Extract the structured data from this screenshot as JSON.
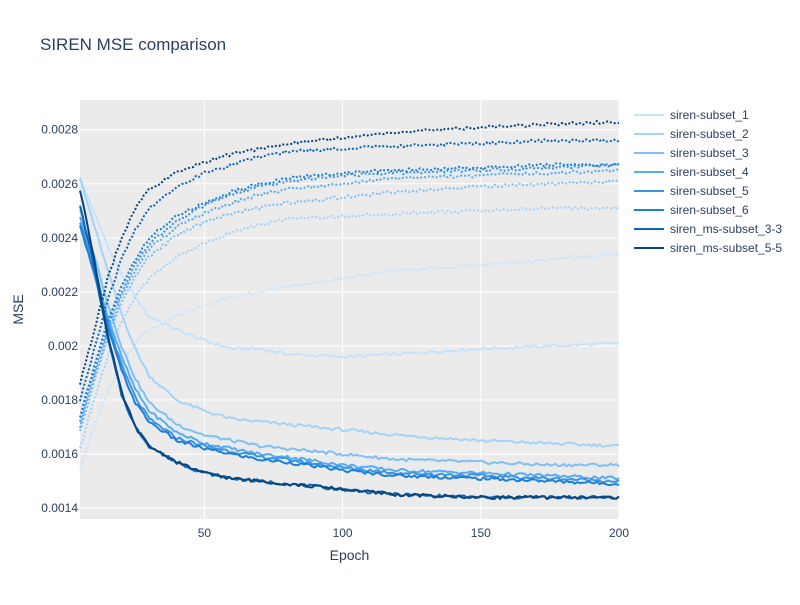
{
  "chart_data": {
    "type": "line",
    "title": "SIREN MSE comparison",
    "xlabel": "Epoch",
    "ylabel": "MSE",
    "xlim": [
      5,
      200
    ],
    "ylim": [
      0.00136,
      0.00291
    ],
    "x_ticks": [
      50,
      100,
      150,
      200
    ],
    "x_tick_labels": [
      "50",
      "100",
      "150",
      "200"
    ],
    "y_ticks": [
      0.0014,
      0.0016,
      0.0018,
      0.002,
      0.0022,
      0.0024,
      0.0026,
      0.0028
    ],
    "y_tick_labels": [
      "0.0014",
      "0.0016",
      "0.0018",
      "0.002",
      "0.0022",
      "0.0024",
      "0.0026",
      "0.0028"
    ],
    "grid": true,
    "plot_background": "#ebebeb",
    "legend_position": "right",
    "line_styles": [
      "solid (train)",
      "dotted (validation)"
    ],
    "series": [
      {
        "name": "siren-subset_1",
        "color": "#c6e3fb",
        "solid": [
          [
            5,
            0.00262
          ],
          [
            10,
            0.0025
          ],
          [
            15,
            0.00237
          ],
          [
            20,
            0.00226
          ],
          [
            25,
            0.00218
          ],
          [
            30,
            0.00211
          ],
          [
            40,
            0.00206
          ],
          [
            50,
            0.00202
          ],
          [
            60,
            0.00199
          ],
          [
            70,
            0.00199
          ],
          [
            80,
            0.00197
          ],
          [
            100,
            0.00196
          ],
          [
            120,
            0.00197
          ],
          [
            150,
            0.00199
          ],
          [
            175,
            0.002
          ],
          [
            200,
            0.00201
          ]
        ],
        "dotted": [
          [
            5,
            0.00155
          ],
          [
            10,
            0.0017
          ],
          [
            15,
            0.00183
          ],
          [
            20,
            0.00193
          ],
          [
            25,
            0.00201
          ],
          [
            30,
            0.00206
          ],
          [
            40,
            0.00211
          ],
          [
            50,
            0.00215
          ],
          [
            60,
            0.00218
          ],
          [
            70,
            0.0022
          ],
          [
            80,
            0.00222
          ],
          [
            100,
            0.00225
          ],
          [
            120,
            0.00228
          ],
          [
            150,
            0.0023
          ],
          [
            175,
            0.00232
          ],
          [
            200,
            0.00234
          ]
        ]
      },
      {
        "name": "siren-subset_2",
        "color": "#a2d3fb",
        "solid": [
          [
            5,
            0.00262
          ],
          [
            10,
            0.00245
          ],
          [
            15,
            0.00228
          ],
          [
            20,
            0.00212
          ],
          [
            25,
            0.00199
          ],
          [
            30,
            0.00189
          ],
          [
            40,
            0.0018
          ],
          [
            50,
            0.00176
          ],
          [
            60,
            0.00173
          ],
          [
            70,
            0.00172
          ],
          [
            80,
            0.00171
          ],
          [
            100,
            0.00169
          ],
          [
            120,
            0.00167
          ],
          [
            150,
            0.00165
          ],
          [
            175,
            0.00164
          ],
          [
            200,
            0.00163
          ]
        ],
        "dotted": [
          [
            5,
            0.00162
          ],
          [
            10,
            0.0018
          ],
          [
            15,
            0.00196
          ],
          [
            20,
            0.00209
          ],
          [
            25,
            0.00218
          ],
          [
            30,
            0.00225
          ],
          [
            40,
            0.00233
          ],
          [
            50,
            0.00238
          ],
          [
            60,
            0.00242
          ],
          [
            70,
            0.00245
          ],
          [
            80,
            0.00247
          ],
          [
            100,
            0.00248
          ],
          [
            120,
            0.00249
          ],
          [
            150,
            0.0025
          ],
          [
            175,
            0.00251
          ],
          [
            200,
            0.00251
          ]
        ]
      },
      {
        "name": "siren-subset_3",
        "color": "#7cc0f7",
        "solid": [
          [
            5,
            0.0025
          ],
          [
            10,
            0.00234
          ],
          [
            15,
            0.00216
          ],
          [
            20,
            0.002
          ],
          [
            25,
            0.00188
          ],
          [
            30,
            0.00179
          ],
          [
            40,
            0.00171
          ],
          [
            50,
            0.00167
          ],
          [
            60,
            0.00165
          ],
          [
            70,
            0.00163
          ],
          [
            80,
            0.00162
          ],
          [
            100,
            0.0016
          ],
          [
            120,
            0.00158
          ],
          [
            150,
            0.00157
          ],
          [
            175,
            0.00156
          ],
          [
            200,
            0.00156
          ]
        ],
        "dotted": [
          [
            5,
            0.00168
          ],
          [
            10,
            0.00186
          ],
          [
            15,
            0.00203
          ],
          [
            20,
            0.00216
          ],
          [
            25,
            0.00226
          ],
          [
            30,
            0.00233
          ],
          [
            40,
            0.00241
          ],
          [
            50,
            0.00246
          ],
          [
            60,
            0.00249
          ],
          [
            70,
            0.00251
          ],
          [
            80,
            0.00253
          ],
          [
            100,
            0.00255
          ],
          [
            120,
            0.00257
          ],
          [
            150,
            0.00259
          ],
          [
            175,
            0.0026
          ],
          [
            200,
            0.00261
          ]
        ]
      },
      {
        "name": "siren-subset_4",
        "color": "#57acf1",
        "solid": [
          [
            5,
            0.00248
          ],
          [
            10,
            0.0023
          ],
          [
            15,
            0.00211
          ],
          [
            20,
            0.00196
          ],
          [
            25,
            0.00184
          ],
          [
            30,
            0.00176
          ],
          [
            40,
            0.00168
          ],
          [
            50,
            0.00164
          ],
          [
            60,
            0.00162
          ],
          [
            70,
            0.0016
          ],
          [
            80,
            0.00159
          ],
          [
            100,
            0.00156
          ],
          [
            120,
            0.00154
          ],
          [
            150,
            0.00153
          ],
          [
            175,
            0.00152
          ],
          [
            200,
            0.00151
          ]
        ],
        "dotted": [
          [
            5,
            0.0017
          ],
          [
            10,
            0.00188
          ],
          [
            15,
            0.00205
          ],
          [
            20,
            0.00218
          ],
          [
            25,
            0.00228
          ],
          [
            30,
            0.00236
          ],
          [
            40,
            0.00244
          ],
          [
            50,
            0.00249
          ],
          [
            60,
            0.00253
          ],
          [
            70,
            0.00256
          ],
          [
            80,
            0.00258
          ],
          [
            100,
            0.0026
          ],
          [
            120,
            0.00262
          ],
          [
            150,
            0.00263
          ],
          [
            175,
            0.00264
          ],
          [
            200,
            0.00265
          ]
        ]
      },
      {
        "name": "siren-subset_5",
        "color": "#3a96e4",
        "solid": [
          [
            5,
            0.00246
          ],
          [
            10,
            0.00228
          ],
          [
            15,
            0.00209
          ],
          [
            20,
            0.00193
          ],
          [
            25,
            0.00181
          ],
          [
            30,
            0.00173
          ],
          [
            40,
            0.00166
          ],
          [
            50,
            0.00163
          ],
          [
            60,
            0.00161
          ],
          [
            70,
            0.00159
          ],
          [
            80,
            0.00158
          ],
          [
            100,
            0.00155
          ],
          [
            120,
            0.00153
          ],
          [
            150,
            0.00152
          ],
          [
            175,
            0.00151
          ],
          [
            200,
            0.0015
          ]
        ],
        "dotted": [
          [
            5,
            0.00172
          ],
          [
            10,
            0.0019
          ],
          [
            15,
            0.00207
          ],
          [
            20,
            0.0022
          ],
          [
            25,
            0.0023
          ],
          [
            30,
            0.00238
          ],
          [
            40,
            0.00246
          ],
          [
            50,
            0.00252
          ],
          [
            60,
            0.00256
          ],
          [
            70,
            0.00259
          ],
          [
            80,
            0.00261
          ],
          [
            100,
            0.00263
          ],
          [
            120,
            0.00264
          ],
          [
            150,
            0.00265
          ],
          [
            175,
            0.00266
          ],
          [
            200,
            0.00267
          ]
        ]
      },
      {
        "name": "siren-subset_6",
        "color": "#1f7fd6",
        "solid": [
          [
            5,
            0.00245
          ],
          [
            10,
            0.00227
          ],
          [
            15,
            0.00207
          ],
          [
            20,
            0.00191
          ],
          [
            25,
            0.00179
          ],
          [
            30,
            0.00172
          ],
          [
            40,
            0.00165
          ],
          [
            50,
            0.00162
          ],
          [
            60,
            0.0016
          ],
          [
            70,
            0.00158
          ],
          [
            80,
            0.00157
          ],
          [
            100,
            0.00154
          ],
          [
            120,
            0.00152
          ],
          [
            150,
            0.00151
          ],
          [
            175,
            0.0015
          ],
          [
            200,
            0.00149
          ]
        ],
        "dotted": [
          [
            5,
            0.00174
          ],
          [
            10,
            0.00192
          ],
          [
            15,
            0.00209
          ],
          [
            20,
            0.00222
          ],
          [
            25,
            0.00232
          ],
          [
            30,
            0.0024
          ],
          [
            40,
            0.00248
          ],
          [
            50,
            0.00253
          ],
          [
            60,
            0.00257
          ],
          [
            70,
            0.0026
          ],
          [
            80,
            0.00262
          ],
          [
            100,
            0.00264
          ],
          [
            120,
            0.00265
          ],
          [
            150,
            0.00266
          ],
          [
            175,
            0.00267
          ],
          [
            200,
            0.00267
          ]
        ]
      },
      {
        "name": "siren_ms-subset_3-3",
        "color": "#0f65b5",
        "solid": [
          [
            5,
            0.00252
          ],
          [
            10,
            0.0023
          ],
          [
            15,
            0.00203
          ],
          [
            20,
            0.00182
          ],
          [
            25,
            0.0017
          ],
          [
            30,
            0.00163
          ],
          [
            40,
            0.00157
          ],
          [
            50,
            0.00153
          ],
          [
            60,
            0.00151
          ],
          [
            70,
            0.0015
          ],
          [
            80,
            0.00149
          ],
          [
            100,
            0.00147
          ],
          [
            120,
            0.00145
          ],
          [
            150,
            0.00144
          ],
          [
            175,
            0.00144
          ],
          [
            200,
            0.00144
          ]
        ],
        "dotted": [
          [
            5,
            0.0018
          ],
          [
            10,
            0.00198
          ],
          [
            15,
            0.00217
          ],
          [
            20,
            0.00232
          ],
          [
            25,
            0.00243
          ],
          [
            30,
            0.00251
          ],
          [
            40,
            0.00259
          ],
          [
            50,
            0.00264
          ],
          [
            60,
            0.00267
          ],
          [
            70,
            0.0027
          ],
          [
            80,
            0.00272
          ],
          [
            100,
            0.00273
          ],
          [
            120,
            0.00274
          ],
          [
            150,
            0.00275
          ],
          [
            175,
            0.00276
          ],
          [
            200,
            0.00276
          ]
        ]
      },
      {
        "name": "siren_ms-subset_5-5",
        "color": "#08467f",
        "solid": [
          [
            5,
            0.00258
          ],
          [
            10,
            0.00233
          ],
          [
            15,
            0.00204
          ],
          [
            20,
            0.00183
          ],
          [
            25,
            0.0017
          ],
          [
            30,
            0.00163
          ],
          [
            40,
            0.00157
          ],
          [
            50,
            0.00153
          ],
          [
            60,
            0.00151
          ],
          [
            70,
            0.0015
          ],
          [
            80,
            0.00149
          ],
          [
            100,
            0.00147
          ],
          [
            120,
            0.00145
          ],
          [
            150,
            0.00144
          ],
          [
            175,
            0.00144
          ],
          [
            200,
            0.00144
          ]
        ],
        "dotted": [
          [
            5,
            0.00186
          ],
          [
            10,
            0.00205
          ],
          [
            15,
            0.00225
          ],
          [
            20,
            0.0024
          ],
          [
            25,
            0.00251
          ],
          [
            30,
            0.00258
          ],
          [
            40,
            0.00264
          ],
          [
            50,
            0.00268
          ],
          [
            60,
            0.00271
          ],
          [
            70,
            0.00273
          ],
          [
            80,
            0.00275
          ],
          [
            100,
            0.00277
          ],
          [
            120,
            0.00279
          ],
          [
            150,
            0.00281
          ],
          [
            175,
            0.00282
          ],
          [
            200,
            0.00283
          ]
        ]
      }
    ]
  }
}
